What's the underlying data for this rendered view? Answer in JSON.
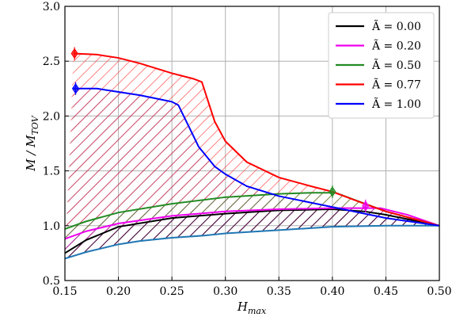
{
  "chart_data": {
    "type": "line",
    "xlabel": "H_max",
    "ylabel": "M / M_TOV",
    "xlim": [
      0.15,
      0.5
    ],
    "ylim": [
      0.5,
      3.0
    ],
    "xticks": [
      "0.15",
      "0.20",
      "0.25",
      "0.30",
      "0.35",
      "0.40",
      "0.45",
      "0.50"
    ],
    "yticks": [
      "0.5",
      "1.0",
      "1.5",
      "2.0",
      "2.5",
      "3.0"
    ],
    "xtick_values": [
      0.15,
      0.2,
      0.25,
      0.3,
      0.35,
      0.4,
      0.45,
      0.5
    ],
    "ytick_values": [
      0.5,
      1.0,
      1.5,
      2.0,
      2.5,
      3.0
    ],
    "grid": true,
    "legend_position": "top-right",
    "lower_boundary": {
      "color": "#1f77b4",
      "x": [
        0.15,
        0.17,
        0.2,
        0.22,
        0.25,
        0.28,
        0.3,
        0.35,
        0.4,
        0.45,
        0.5
      ],
      "y": [
        0.7,
        0.76,
        0.83,
        0.86,
        0.89,
        0.91,
        0.93,
        0.96,
        0.99,
        1.0,
        1.0
      ]
    },
    "series": [
      {
        "name": "Ã = 0.00",
        "color": "#000000",
        "x": [
          0.15,
          0.17,
          0.2,
          0.25,
          0.3,
          0.35,
          0.4,
          0.43,
          0.45,
          0.5
        ],
        "y": [
          0.75,
          0.87,
          0.99,
          1.07,
          1.11,
          1.14,
          1.15,
          1.13,
          1.1,
          1.0
        ],
        "fill_color": "#000000",
        "marker": null
      },
      {
        "name": "Ã = 0.20",
        "color": "#ee00ee",
        "x": [
          0.15,
          0.17,
          0.2,
          0.25,
          0.3,
          0.35,
          0.4,
          0.431,
          0.44,
          0.445,
          0.47,
          0.5
        ],
        "y": [
          0.88,
          0.95,
          1.02,
          1.09,
          1.13,
          1.15,
          1.16,
          1.16,
          1.16,
          1.16,
          1.1,
          1.0
        ],
        "fill_color": "#ee00ee",
        "marker": {
          "x": 0.431,
          "y": 1.18
        }
      },
      {
        "name": "Ã = 0.50",
        "color": "#228B22",
        "x": [
          0.15,
          0.17,
          0.2,
          0.25,
          0.3,
          0.35,
          0.38,
          0.4,
          0.403,
          0.45,
          0.5
        ],
        "y": [
          0.97,
          1.04,
          1.12,
          1.2,
          1.26,
          1.29,
          1.3,
          1.3,
          1.3,
          1.13,
          1.0
        ],
        "fill_color": "#228B22",
        "marker": {
          "x": 0.4,
          "y": 1.31
        }
      },
      {
        "name": "Ã = 0.77",
        "color": "#ff0000",
        "x": [
          0.158,
          0.18,
          0.2,
          0.22,
          0.25,
          0.27,
          0.278,
          0.285,
          0.29,
          0.3,
          0.32,
          0.35,
          0.38,
          0.4,
          0.43,
          0.45,
          0.5
        ],
        "y": [
          2.57,
          2.56,
          2.53,
          2.48,
          2.39,
          2.34,
          2.31,
          2.1,
          1.95,
          1.77,
          1.58,
          1.44,
          1.36,
          1.31,
          1.2,
          1.13,
          1.0
        ],
        "fill_color": "#ff3333",
        "marker": {
          "x": 0.159,
          "y": 2.57
        }
      },
      {
        "name": "Ã = 1.00",
        "color": "#0000ff",
        "x": [
          0.158,
          0.18,
          0.2,
          0.22,
          0.24,
          0.25,
          0.256,
          0.265,
          0.275,
          0.29,
          0.3,
          0.32,
          0.35,
          0.4,
          0.45,
          0.5
        ],
        "y": [
          2.25,
          2.25,
          2.22,
          2.19,
          2.15,
          2.13,
          2.1,
          1.92,
          1.72,
          1.54,
          1.47,
          1.36,
          1.27,
          1.17,
          1.07,
          1.0
        ],
        "fill_color": "#3a1a8a",
        "marker": {
          "x": 0.16,
          "y": 2.25
        }
      }
    ]
  }
}
